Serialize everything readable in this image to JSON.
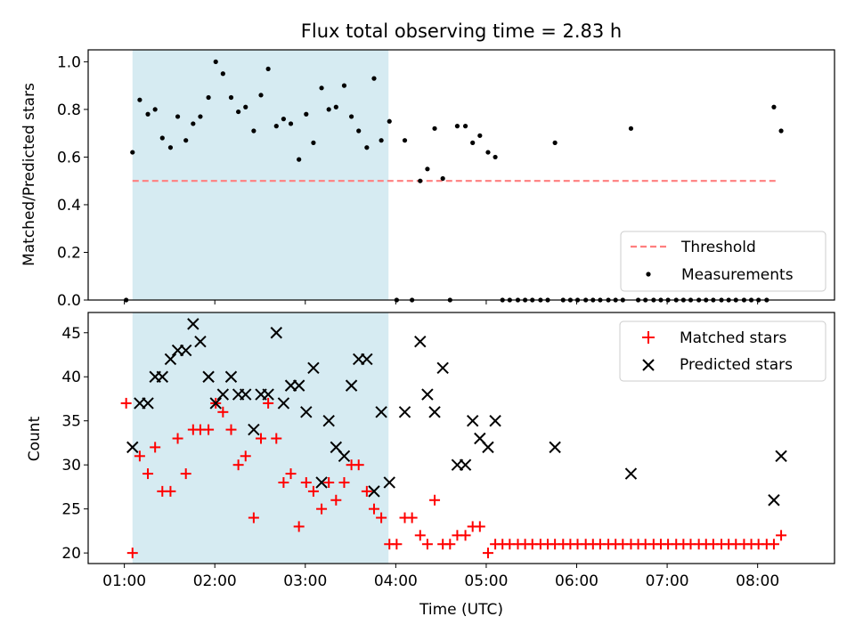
{
  "chart_data": {
    "title": "Flux total observing time = 2.83 h",
    "xlabel": "Time (UTC)",
    "xlim_hours": [
      0.6,
      8.85
    ],
    "x_ticks": [
      {
        "label": "01:00",
        "value": 1
      },
      {
        "label": "02:00",
        "value": 2
      },
      {
        "label": "03:00",
        "value": 3
      },
      {
        "label": "04:00",
        "value": 4
      },
      {
        "label": "05:00",
        "value": 5
      },
      {
        "label": "06:00",
        "value": 6
      },
      {
        "label": "07:00",
        "value": 7
      },
      {
        "label": "08:00",
        "value": 8
      }
    ],
    "shaded_interval_hours": [
      1.09,
      3.92
    ],
    "shade_color": "#add8e6",
    "top": {
      "type": "scatter",
      "ylabel": "Matched/Predicted stars",
      "ylim": [
        0,
        1.05
      ],
      "y_ticks": [
        "0.0",
        "0.2",
        "0.4",
        "0.6",
        "0.8",
        "1.0"
      ],
      "threshold": {
        "value": 0.5,
        "x_range": [
          1.09,
          8.2
        ],
        "label": "Threshold",
        "color": "#ff7f7f"
      },
      "measurements_label": "Measurements",
      "points": [
        [
          1.02,
          0
        ],
        [
          1.09,
          0.62
        ],
        [
          1.17,
          0.84
        ],
        [
          1.26,
          0.78
        ],
        [
          1.34,
          0.8
        ],
        [
          1.42,
          0.68
        ],
        [
          1.51,
          0.64
        ],
        [
          1.59,
          0.77
        ],
        [
          1.68,
          0.67
        ],
        [
          1.76,
          0.74
        ],
        [
          1.84,
          0.77
        ],
        [
          1.93,
          0.85
        ],
        [
          2.01,
          1.0
        ],
        [
          2.09,
          0.95
        ],
        [
          2.18,
          0.85
        ],
        [
          2.26,
          0.79
        ],
        [
          2.34,
          0.81
        ],
        [
          2.43,
          0.71
        ],
        [
          2.51,
          0.86
        ],
        [
          2.59,
          0.97
        ],
        [
          2.68,
          0.73
        ],
        [
          2.76,
          0.76
        ],
        [
          2.84,
          0.74
        ],
        [
          2.93,
          0.59
        ],
        [
          3.01,
          0.78
        ],
        [
          3.09,
          0.66
        ],
        [
          3.18,
          0.89
        ],
        [
          3.26,
          0.8
        ],
        [
          3.34,
          0.81
        ],
        [
          3.43,
          0.9
        ],
        [
          3.51,
          0.77
        ],
        [
          3.59,
          0.71
        ],
        [
          3.68,
          0.64
        ],
        [
          3.76,
          0.93
        ],
        [
          3.84,
          0.67
        ],
        [
          3.93,
          0.75
        ],
        [
          4.01,
          0
        ],
        [
          4.1,
          0.67
        ],
        [
          4.18,
          0
        ],
        [
          4.27,
          0.5
        ],
        [
          4.35,
          0.55
        ],
        [
          4.43,
          0.72
        ],
        [
          4.52,
          0.51
        ],
        [
          4.6,
          0
        ],
        [
          4.68,
          0.73
        ],
        [
          4.77,
          0.73
        ],
        [
          4.85,
          0.66
        ],
        [
          4.93,
          0.69
        ],
        [
          5.02,
          0.62
        ],
        [
          5.1,
          0.6
        ],
        [
          5.18,
          0
        ],
        [
          5.26,
          0
        ],
        [
          5.35,
          0
        ],
        [
          5.43,
          0
        ],
        [
          5.51,
          0
        ],
        [
          5.6,
          0
        ],
        [
          5.68,
          0
        ],
        [
          5.76,
          0.66
        ],
        [
          5.85,
          0
        ],
        [
          5.93,
          0
        ],
        [
          6.01,
          0
        ],
        [
          6.1,
          0
        ],
        [
          6.18,
          0
        ],
        [
          6.26,
          0
        ],
        [
          6.35,
          0
        ],
        [
          6.43,
          0
        ],
        [
          6.51,
          0
        ],
        [
          6.6,
          0.72
        ],
        [
          6.68,
          0
        ],
        [
          6.76,
          0
        ],
        [
          6.85,
          0
        ],
        [
          6.93,
          0
        ],
        [
          7.01,
          0
        ],
        [
          7.1,
          0
        ],
        [
          7.18,
          0
        ],
        [
          7.26,
          0
        ],
        [
          7.35,
          0
        ],
        [
          7.43,
          0
        ],
        [
          7.51,
          0
        ],
        [
          7.6,
          0
        ],
        [
          7.68,
          0
        ],
        [
          7.76,
          0
        ],
        [
          7.85,
          0
        ],
        [
          7.93,
          0
        ],
        [
          8.01,
          0
        ],
        [
          8.1,
          0
        ],
        [
          8.18,
          0.81
        ],
        [
          8.26,
          0.71
        ]
      ]
    },
    "bottom": {
      "type": "scatter",
      "ylabel": "Count",
      "ylim": [
        18.8,
        47.3
      ],
      "y_ticks": [
        20,
        25,
        30,
        35,
        40,
        45
      ],
      "series": [
        {
          "name": "Matched stars",
          "marker": "+",
          "color": "#ff0000",
          "points": [
            [
              1.02,
              37
            ],
            [
              1.09,
              20
            ],
            [
              1.17,
              31
            ],
            [
              1.26,
              29
            ],
            [
              1.34,
              32
            ],
            [
              1.42,
              27
            ],
            [
              1.51,
              27
            ],
            [
              1.59,
              33
            ],
            [
              1.68,
              29
            ],
            [
              1.76,
              34
            ],
            [
              1.84,
              34
            ],
            [
              1.93,
              34
            ],
            [
              2.01,
              37
            ],
            [
              2.09,
              36
            ],
            [
              2.18,
              34
            ],
            [
              2.26,
              30
            ],
            [
              2.34,
              31
            ],
            [
              2.43,
              24
            ],
            [
              2.51,
              33
            ],
            [
              2.59,
              37
            ],
            [
              2.68,
              33
            ],
            [
              2.76,
              28
            ],
            [
              2.84,
              29
            ],
            [
              2.93,
              23
            ],
            [
              3.01,
              28
            ],
            [
              3.09,
              27
            ],
            [
              3.18,
              25
            ],
            [
              3.26,
              28
            ],
            [
              3.34,
              26
            ],
            [
              3.43,
              28
            ],
            [
              3.51,
              30
            ],
            [
              3.59,
              30
            ],
            [
              3.68,
              27
            ],
            [
              3.76,
              25
            ],
            [
              3.84,
              24
            ],
            [
              3.93,
              21
            ],
            [
              4.01,
              21
            ],
            [
              4.1,
              24
            ],
            [
              4.18,
              24
            ],
            [
              4.27,
              22
            ],
            [
              4.35,
              21
            ],
            [
              4.43,
              26
            ],
            [
              4.52,
              21
            ],
            [
              4.6,
              21
            ],
            [
              4.68,
              22
            ],
            [
              4.77,
              22
            ],
            [
              4.85,
              23
            ],
            [
              4.93,
              23
            ],
            [
              5.02,
              20
            ],
            [
              5.1,
              21
            ],
            [
              5.18,
              21
            ],
            [
              5.26,
              21
            ],
            [
              5.35,
              21
            ],
            [
              5.43,
              21
            ],
            [
              5.51,
              21
            ],
            [
              5.6,
              21
            ],
            [
              5.68,
              21
            ],
            [
              5.76,
              21
            ],
            [
              5.85,
              21
            ],
            [
              5.93,
              21
            ],
            [
              6.01,
              21
            ],
            [
              6.1,
              21
            ],
            [
              6.18,
              21
            ],
            [
              6.26,
              21
            ],
            [
              6.35,
              21
            ],
            [
              6.43,
              21
            ],
            [
              6.51,
              21
            ],
            [
              6.6,
              21
            ],
            [
              6.68,
              21
            ],
            [
              6.76,
              21
            ],
            [
              6.85,
              21
            ],
            [
              6.93,
              21
            ],
            [
              7.01,
              21
            ],
            [
              7.1,
              21
            ],
            [
              7.18,
              21
            ],
            [
              7.26,
              21
            ],
            [
              7.35,
              21
            ],
            [
              7.43,
              21
            ],
            [
              7.51,
              21
            ],
            [
              7.6,
              21
            ],
            [
              7.68,
              21
            ],
            [
              7.76,
              21
            ],
            [
              7.85,
              21
            ],
            [
              7.93,
              21
            ],
            [
              8.01,
              21
            ],
            [
              8.1,
              21
            ],
            [
              8.18,
              21
            ],
            [
              8.26,
              22
            ]
          ]
        },
        {
          "name": "Predicted stars",
          "marker": "x",
          "color": "#000000",
          "points": [
            [
              1.09,
              32
            ],
            [
              1.17,
              37
            ],
            [
              1.26,
              37
            ],
            [
              1.34,
              40
            ],
            [
              1.42,
              40
            ],
            [
              1.51,
              42
            ],
            [
              1.59,
              43
            ],
            [
              1.68,
              43
            ],
            [
              1.76,
              46
            ],
            [
              1.84,
              44
            ],
            [
              1.93,
              40
            ],
            [
              2.01,
              37
            ],
            [
              2.09,
              38
            ],
            [
              2.18,
              40
            ],
            [
              2.26,
              38
            ],
            [
              2.34,
              38
            ],
            [
              2.43,
              34
            ],
            [
              2.51,
              38
            ],
            [
              2.59,
              38
            ],
            [
              2.68,
              45
            ],
            [
              2.76,
              37
            ],
            [
              2.84,
              39
            ],
            [
              2.93,
              39
            ],
            [
              3.01,
              36
            ],
            [
              3.09,
              41
            ],
            [
              3.18,
              28
            ],
            [
              3.26,
              35
            ],
            [
              3.34,
              32
            ],
            [
              3.43,
              31
            ],
            [
              3.51,
              39
            ],
            [
              3.59,
              42
            ],
            [
              3.68,
              42
            ],
            [
              3.76,
              27
            ],
            [
              3.84,
              36
            ],
            [
              3.93,
              28
            ],
            [
              4.1,
              36
            ],
            [
              4.27,
              44
            ],
            [
              4.35,
              38
            ],
            [
              4.43,
              36
            ],
            [
              4.52,
              41
            ],
            [
              4.68,
              30
            ],
            [
              4.77,
              30
            ],
            [
              4.85,
              35
            ],
            [
              4.93,
              33
            ],
            [
              5.02,
              32
            ],
            [
              5.1,
              35
            ],
            [
              5.76,
              32
            ],
            [
              6.6,
              29
            ],
            [
              8.18,
              26
            ],
            [
              8.26,
              31
            ]
          ]
        }
      ]
    }
  }
}
